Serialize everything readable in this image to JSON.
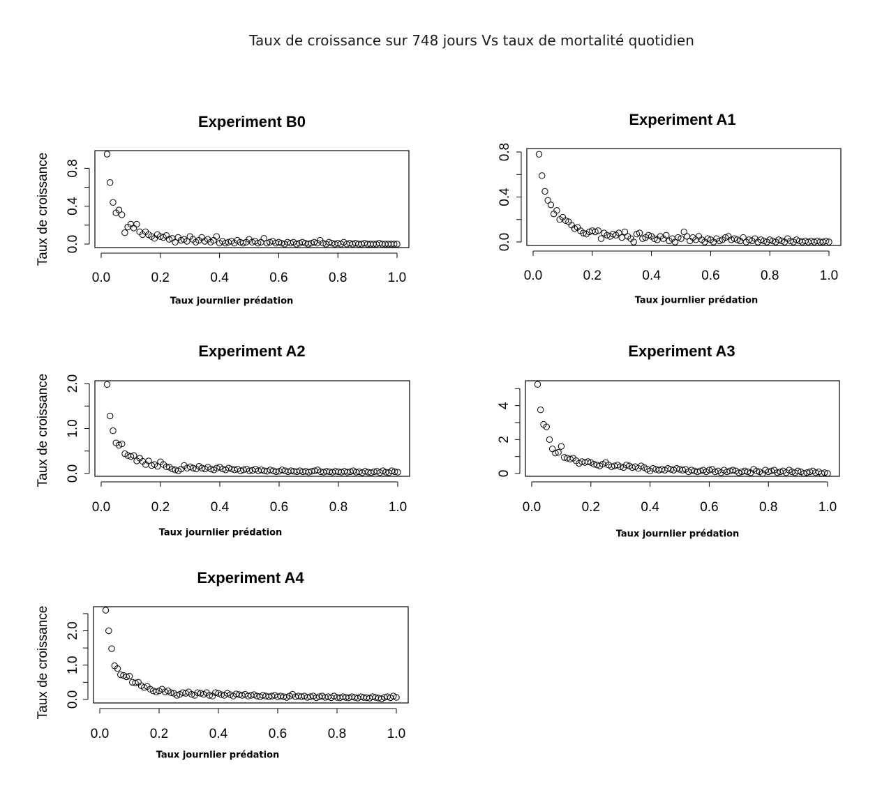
{
  "main_title": "Taux de croissance sur 748 jours Vs taux de mortalité quotidien",
  "chart_data": [
    {
      "type": "scatter",
      "title": "Experiment B0",
      "xlabel": "Taux journlier prédation",
      "ylabel": "Taux de croissance",
      "xlim": [
        0,
        1
      ],
      "ylim": [
        0,
        0.95
      ],
      "xticks": [
        0,
        0.2,
        0.4,
        0.6,
        0.8,
        1
      ],
      "xtick_labels": [
        "0.0",
        "0.2",
        "0.4",
        "0.6",
        "0.8",
        "1.0"
      ],
      "yticks": [
        0,
        0.4,
        0.8
      ],
      "ytick_labels": [
        "0.0",
        "0.4",
        "0.8"
      ],
      "yminor": [
        0.2,
        0.6
      ],
      "x": [
        0.02,
        0.03,
        0.04,
        0.05,
        0.06,
        0.07,
        0.08,
        0.09,
        0.1,
        0.11,
        0.12,
        0.13,
        0.14,
        0.15,
        0.16,
        0.17,
        0.18,
        0.19,
        0.2,
        0.21,
        0.22,
        0.23,
        0.24,
        0.25,
        0.26,
        0.27,
        0.28,
        0.29,
        0.3,
        0.31,
        0.32,
        0.33,
        0.34,
        0.35,
        0.36,
        0.37,
        0.38,
        0.39,
        0.4,
        0.41,
        0.42,
        0.43,
        0.44,
        0.45,
        0.46,
        0.47,
        0.48,
        0.49,
        0.5,
        0.51,
        0.52,
        0.53,
        0.54,
        0.55,
        0.56,
        0.57,
        0.58,
        0.59,
        0.6,
        0.61,
        0.62,
        0.63,
        0.64,
        0.65,
        0.66,
        0.67,
        0.68,
        0.69,
        0.7,
        0.71,
        0.72,
        0.73,
        0.74,
        0.75,
        0.76,
        0.77,
        0.78,
        0.79,
        0.8,
        0.81,
        0.82,
        0.83,
        0.84,
        0.85,
        0.86,
        0.87,
        0.88,
        0.89,
        0.9,
        0.91,
        0.92,
        0.93,
        0.94,
        0.95,
        0.96,
        0.97,
        0.98,
        0.99,
        1.0
      ],
      "y": [
        0.95,
        0.65,
        0.44,
        0.33,
        0.36,
        0.31,
        0.12,
        0.18,
        0.21,
        0.17,
        0.21,
        0.13,
        0.1,
        0.13,
        0.1,
        0.08,
        0.06,
        0.1,
        0.08,
        0.07,
        0.09,
        0.05,
        0.06,
        0.02,
        0.07,
        0.04,
        0.05,
        0.03,
        0.08,
        0.05,
        0.02,
        0.04,
        0.07,
        0.03,
        0.05,
        0.02,
        0.04,
        0.08,
        0.01,
        0.03,
        0.01,
        0.02,
        0.03,
        0.01,
        0.04,
        0.02,
        0.01,
        0.02,
        0.05,
        0.02,
        0.03,
        0.01,
        0.02,
        0.06,
        0.01,
        0.02,
        0.03,
        0.01,
        0.02,
        0.01,
        0.0,
        0.02,
        0.01,
        0.02,
        0.0,
        0.01,
        0.02,
        0.01,
        0.0,
        0.01,
        0.02,
        0.01,
        0.04,
        0.01,
        0.0,
        0.02,
        0.01,
        0.0,
        0.01,
        0.0,
        0.02,
        0.0,
        0.01,
        0.0,
        0.01,
        0.0,
        0.0,
        0.01,
        0.0,
        0.0,
        0.0,
        0.0,
        0.01,
        0.0,
        0.0,
        0.0,
        0.0,
        0.0,
        0.0
      ]
    },
    {
      "type": "scatter",
      "title": "Experiment A1",
      "xlabel": "Taux journlier prédation",
      "ylabel": "",
      "xlim": [
        0,
        1
      ],
      "ylim": [
        0,
        0.8
      ],
      "xticks": [
        0,
        0.2,
        0.4,
        0.6,
        0.8,
        1
      ],
      "xtick_labels": [
        "0.0",
        "0.2",
        "0.4",
        "0.6",
        "0.8",
        "1.0"
      ],
      "yticks": [
        0,
        0.4,
        0.8
      ],
      "ytick_labels": [
        "0.0",
        "0.4",
        "0.8"
      ],
      "yminor": [
        0.2,
        0.6
      ],
      "x": [
        0.02,
        0.03,
        0.04,
        0.05,
        0.06,
        0.07,
        0.08,
        0.09,
        0.1,
        0.11,
        0.12,
        0.13,
        0.14,
        0.15,
        0.16,
        0.17,
        0.18,
        0.19,
        0.2,
        0.21,
        0.22,
        0.23,
        0.24,
        0.25,
        0.26,
        0.27,
        0.28,
        0.29,
        0.3,
        0.31,
        0.32,
        0.33,
        0.34,
        0.35,
        0.36,
        0.37,
        0.38,
        0.39,
        0.4,
        0.41,
        0.42,
        0.43,
        0.44,
        0.45,
        0.46,
        0.47,
        0.48,
        0.49,
        0.5,
        0.51,
        0.52,
        0.53,
        0.54,
        0.55,
        0.56,
        0.57,
        0.58,
        0.59,
        0.6,
        0.61,
        0.62,
        0.63,
        0.64,
        0.65,
        0.66,
        0.67,
        0.68,
        0.69,
        0.7,
        0.71,
        0.72,
        0.73,
        0.74,
        0.75,
        0.76,
        0.77,
        0.78,
        0.79,
        0.8,
        0.81,
        0.82,
        0.83,
        0.84,
        0.85,
        0.86,
        0.87,
        0.88,
        0.89,
        0.9,
        0.91,
        0.92,
        0.93,
        0.94,
        0.95,
        0.96,
        0.97,
        0.98,
        0.99,
        1.0
      ],
      "y": [
        0.78,
        0.59,
        0.45,
        0.37,
        0.33,
        0.25,
        0.28,
        0.2,
        0.22,
        0.19,
        0.18,
        0.15,
        0.12,
        0.13,
        0.1,
        0.08,
        0.07,
        0.09,
        0.1,
        0.09,
        0.1,
        0.03,
        0.08,
        0.06,
        0.05,
        0.07,
        0.06,
        0.08,
        0.04,
        0.09,
        0.05,
        0.03,
        0.0,
        0.07,
        0.08,
        0.03,
        0.04,
        0.06,
        0.05,
        0.03,
        0.02,
        0.05,
        0.03,
        0.06,
        0.01,
        0.03,
        0.0,
        0.04,
        0.03,
        0.09,
        0.05,
        0.01,
        0.04,
        0.02,
        0.05,
        0.02,
        0.0,
        0.03,
        0.02,
        0.0,
        0.03,
        0.01,
        0.02,
        0.04,
        0.05,
        0.02,
        0.03,
        0.02,
        0.01,
        0.04,
        0.0,
        0.02,
        0.01,
        0.03,
        0.0,
        0.02,
        0.01,
        0.0,
        0.02,
        0.01,
        0.0,
        0.02,
        0.01,
        0.0,
        0.03,
        0.01,
        0.0,
        0.02,
        0.01,
        0.0,
        0.01,
        0.0,
        0.01,
        0.0,
        0.01,
        0.0,
        0.0,
        0.01,
        0.0
      ]
    },
    {
      "type": "scatter",
      "title": "Experiment A2",
      "xlabel": "Taux journlier prédation",
      "ylabel": "Taux de croissance",
      "xlim": [
        0,
        1
      ],
      "ylim": [
        0,
        2.0
      ],
      "xticks": [
        0,
        0.2,
        0.4,
        0.6,
        0.8,
        1
      ],
      "xtick_labels": [
        "0.0",
        "0.2",
        "0.4",
        "0.6",
        "0.8",
        "1.0"
      ],
      "yticks": [
        0,
        1,
        2
      ],
      "ytick_labels": [
        "0.0",
        "1.0",
        "2.0"
      ],
      "yminor": [
        0.5,
        1.5
      ],
      "x": [
        0.02,
        0.03,
        0.04,
        0.05,
        0.06,
        0.07,
        0.08,
        0.09,
        0.1,
        0.11,
        0.12,
        0.13,
        0.14,
        0.15,
        0.16,
        0.17,
        0.18,
        0.19,
        0.2,
        0.21,
        0.22,
        0.23,
        0.24,
        0.25,
        0.26,
        0.27,
        0.28,
        0.29,
        0.3,
        0.31,
        0.32,
        0.33,
        0.34,
        0.35,
        0.36,
        0.37,
        0.38,
        0.39,
        0.4,
        0.41,
        0.42,
        0.43,
        0.44,
        0.45,
        0.46,
        0.47,
        0.48,
        0.49,
        0.5,
        0.51,
        0.52,
        0.53,
        0.54,
        0.55,
        0.56,
        0.57,
        0.58,
        0.59,
        0.6,
        0.61,
        0.62,
        0.63,
        0.64,
        0.65,
        0.66,
        0.67,
        0.68,
        0.69,
        0.7,
        0.71,
        0.72,
        0.73,
        0.74,
        0.75,
        0.76,
        0.77,
        0.78,
        0.79,
        0.8,
        0.81,
        0.82,
        0.83,
        0.84,
        0.85,
        0.86,
        0.87,
        0.88,
        0.89,
        0.9,
        0.91,
        0.92,
        0.93,
        0.94,
        0.95,
        0.96,
        0.97,
        0.98,
        0.99,
        1.0
      ],
      "y": [
        1.98,
        1.28,
        0.95,
        0.68,
        0.63,
        0.66,
        0.44,
        0.4,
        0.38,
        0.4,
        0.28,
        0.34,
        0.27,
        0.2,
        0.28,
        0.18,
        0.2,
        0.16,
        0.26,
        0.2,
        0.15,
        0.14,
        0.1,
        0.08,
        0.06,
        0.1,
        0.18,
        0.12,
        0.15,
        0.12,
        0.1,
        0.16,
        0.12,
        0.1,
        0.14,
        0.1,
        0.08,
        0.12,
        0.14,
        0.1,
        0.08,
        0.12,
        0.1,
        0.08,
        0.1,
        0.06,
        0.08,
        0.1,
        0.06,
        0.07,
        0.1,
        0.06,
        0.08,
        0.06,
        0.05,
        0.08,
        0.06,
        0.04,
        0.05,
        0.08,
        0.06,
        0.04,
        0.06,
        0.05,
        0.04,
        0.06,
        0.04,
        0.05,
        0.03,
        0.05,
        0.06,
        0.08,
        0.04,
        0.03,
        0.05,
        0.04,
        0.03,
        0.05,
        0.04,
        0.03,
        0.05,
        0.03,
        0.04,
        0.06,
        0.03,
        0.04,
        0.02,
        0.05,
        0.03,
        0.02,
        0.04,
        0.05,
        0.02,
        0.06,
        0.03,
        0.02,
        0.06,
        0.04,
        0.03
      ]
    },
    {
      "type": "scatter",
      "title": "Experiment A3",
      "xlabel": "Taux journlier prédation",
      "ylabel": "",
      "xlim": [
        0,
        1
      ],
      "ylim": [
        0,
        5.3
      ],
      "xticks": [
        0,
        0.2,
        0.4,
        0.6,
        0.8,
        1
      ],
      "xtick_labels": [
        "0.0",
        "0.2",
        "0.4",
        "0.6",
        "0.8",
        "1.0"
      ],
      "yticks": [
        0,
        2,
        4
      ],
      "ytick_labels": [
        "0",
        "2",
        "4"
      ],
      "yminor": [
        1,
        3,
        5
      ],
      "x": [
        0.02,
        0.03,
        0.04,
        0.05,
        0.06,
        0.07,
        0.08,
        0.09,
        0.1,
        0.11,
        0.12,
        0.13,
        0.14,
        0.15,
        0.16,
        0.17,
        0.18,
        0.19,
        0.2,
        0.21,
        0.22,
        0.23,
        0.24,
        0.25,
        0.26,
        0.27,
        0.28,
        0.29,
        0.3,
        0.31,
        0.32,
        0.33,
        0.34,
        0.35,
        0.36,
        0.37,
        0.38,
        0.39,
        0.4,
        0.41,
        0.42,
        0.43,
        0.44,
        0.45,
        0.46,
        0.47,
        0.48,
        0.49,
        0.5,
        0.51,
        0.52,
        0.53,
        0.54,
        0.55,
        0.56,
        0.57,
        0.58,
        0.59,
        0.6,
        0.61,
        0.62,
        0.63,
        0.64,
        0.65,
        0.66,
        0.67,
        0.68,
        0.69,
        0.7,
        0.71,
        0.72,
        0.73,
        0.74,
        0.75,
        0.76,
        0.77,
        0.78,
        0.79,
        0.8,
        0.81,
        0.82,
        0.83,
        0.84,
        0.85,
        0.86,
        0.87,
        0.88,
        0.89,
        0.9,
        0.91,
        0.92,
        0.93,
        0.94,
        0.95,
        0.96,
        0.97,
        0.98,
        0.99,
        1.0
      ],
      "y": [
        5.25,
        3.75,
        2.9,
        2.75,
        2.0,
        1.45,
        1.2,
        1.25,
        1.6,
        0.95,
        0.9,
        0.85,
        0.9,
        0.75,
        0.6,
        0.7,
        0.65,
        0.7,
        0.65,
        0.55,
        0.5,
        0.45,
        0.55,
        0.65,
        0.5,
        0.4,
        0.45,
        0.5,
        0.4,
        0.35,
        0.5,
        0.45,
        0.35,
        0.4,
        0.3,
        0.45,
        0.35,
        0.25,
        0.15,
        0.3,
        0.25,
        0.2,
        0.25,
        0.2,
        0.3,
        0.25,
        0.2,
        0.3,
        0.25,
        0.2,
        0.25,
        0.1,
        0.2,
        0.15,
        0.1,
        0.15,
        0.2,
        0.1,
        0.2,
        0.25,
        0.1,
        0.15,
        0.05,
        0.2,
        0.1,
        0.15,
        0.2,
        0.15,
        0.05,
        0.1,
        0.15,
        0.1,
        0.05,
        0.25,
        0.15,
        0.1,
        0.0,
        0.2,
        0.1,
        0.15,
        0.2,
        0.05,
        0.1,
        0.15,
        0.05,
        0.2,
        0.1,
        0.05,
        0.15,
        0.1,
        0.0,
        0.05,
        0.1,
        0.15,
        0.05,
        0.1,
        0.0,
        0.05,
        0.0
      ]
    },
    {
      "type": "scatter",
      "title": "Experiment A4",
      "xlabel": "Taux journlier prédation",
      "ylabel": "Taux de croissance",
      "xlim": [
        0,
        1
      ],
      "ylim": [
        0,
        2.6
      ],
      "xticks": [
        0,
        0.2,
        0.4,
        0.6,
        0.8,
        1
      ],
      "xtick_labels": [
        "0.0",
        "0.2",
        "0.4",
        "0.6",
        "0.8",
        "1.0"
      ],
      "yticks": [
        0,
        1,
        2
      ],
      "ytick_labels": [
        "0.0",
        "1.0",
        "2.0"
      ],
      "yminor": [
        0.5,
        1.5,
        2.5
      ],
      "x": [
        0.02,
        0.03,
        0.04,
        0.05,
        0.06,
        0.07,
        0.08,
        0.09,
        0.1,
        0.11,
        0.12,
        0.13,
        0.14,
        0.15,
        0.16,
        0.17,
        0.18,
        0.19,
        0.2,
        0.21,
        0.22,
        0.23,
        0.24,
        0.25,
        0.26,
        0.27,
        0.28,
        0.29,
        0.3,
        0.31,
        0.32,
        0.33,
        0.34,
        0.35,
        0.36,
        0.37,
        0.38,
        0.39,
        0.4,
        0.41,
        0.42,
        0.43,
        0.44,
        0.45,
        0.46,
        0.47,
        0.48,
        0.49,
        0.5,
        0.51,
        0.52,
        0.53,
        0.54,
        0.55,
        0.56,
        0.57,
        0.58,
        0.59,
        0.6,
        0.61,
        0.62,
        0.63,
        0.64,
        0.65,
        0.66,
        0.67,
        0.68,
        0.69,
        0.7,
        0.71,
        0.72,
        0.73,
        0.74,
        0.75,
        0.76,
        0.77,
        0.78,
        0.79,
        0.8,
        0.81,
        0.82,
        0.83,
        0.84,
        0.85,
        0.86,
        0.87,
        0.88,
        0.89,
        0.9,
        0.91,
        0.92,
        0.93,
        0.94,
        0.95,
        0.96,
        0.97,
        0.98,
        0.99,
        1.0
      ],
      "y": [
        2.6,
        2.0,
        1.48,
        0.98,
        0.9,
        0.72,
        0.7,
        0.66,
        0.68,
        0.5,
        0.48,
        0.5,
        0.4,
        0.35,
        0.38,
        0.3,
        0.25,
        0.22,
        0.25,
        0.3,
        0.22,
        0.25,
        0.2,
        0.18,
        0.12,
        0.15,
        0.2,
        0.18,
        0.22,
        0.15,
        0.12,
        0.2,
        0.18,
        0.15,
        0.2,
        0.12,
        0.1,
        0.2,
        0.18,
        0.14,
        0.12,
        0.18,
        0.14,
        0.1,
        0.16,
        0.14,
        0.12,
        0.15,
        0.1,
        0.12,
        0.14,
        0.1,
        0.08,
        0.12,
        0.1,
        0.08,
        0.1,
        0.12,
        0.08,
        0.1,
        0.08,
        0.06,
        0.1,
        0.15,
        0.08,
        0.1,
        0.08,
        0.1,
        0.06,
        0.08,
        0.1,
        0.05,
        0.08,
        0.1,
        0.06,
        0.08,
        0.05,
        0.1,
        0.06,
        0.05,
        0.08,
        0.06,
        0.05,
        0.08,
        0.06,
        0.04,
        0.08,
        0.06,
        0.05,
        0.04,
        0.08,
        0.06,
        0.04,
        0.02,
        0.06,
        0.08,
        0.05,
        0.1,
        0.06
      ]
    }
  ]
}
